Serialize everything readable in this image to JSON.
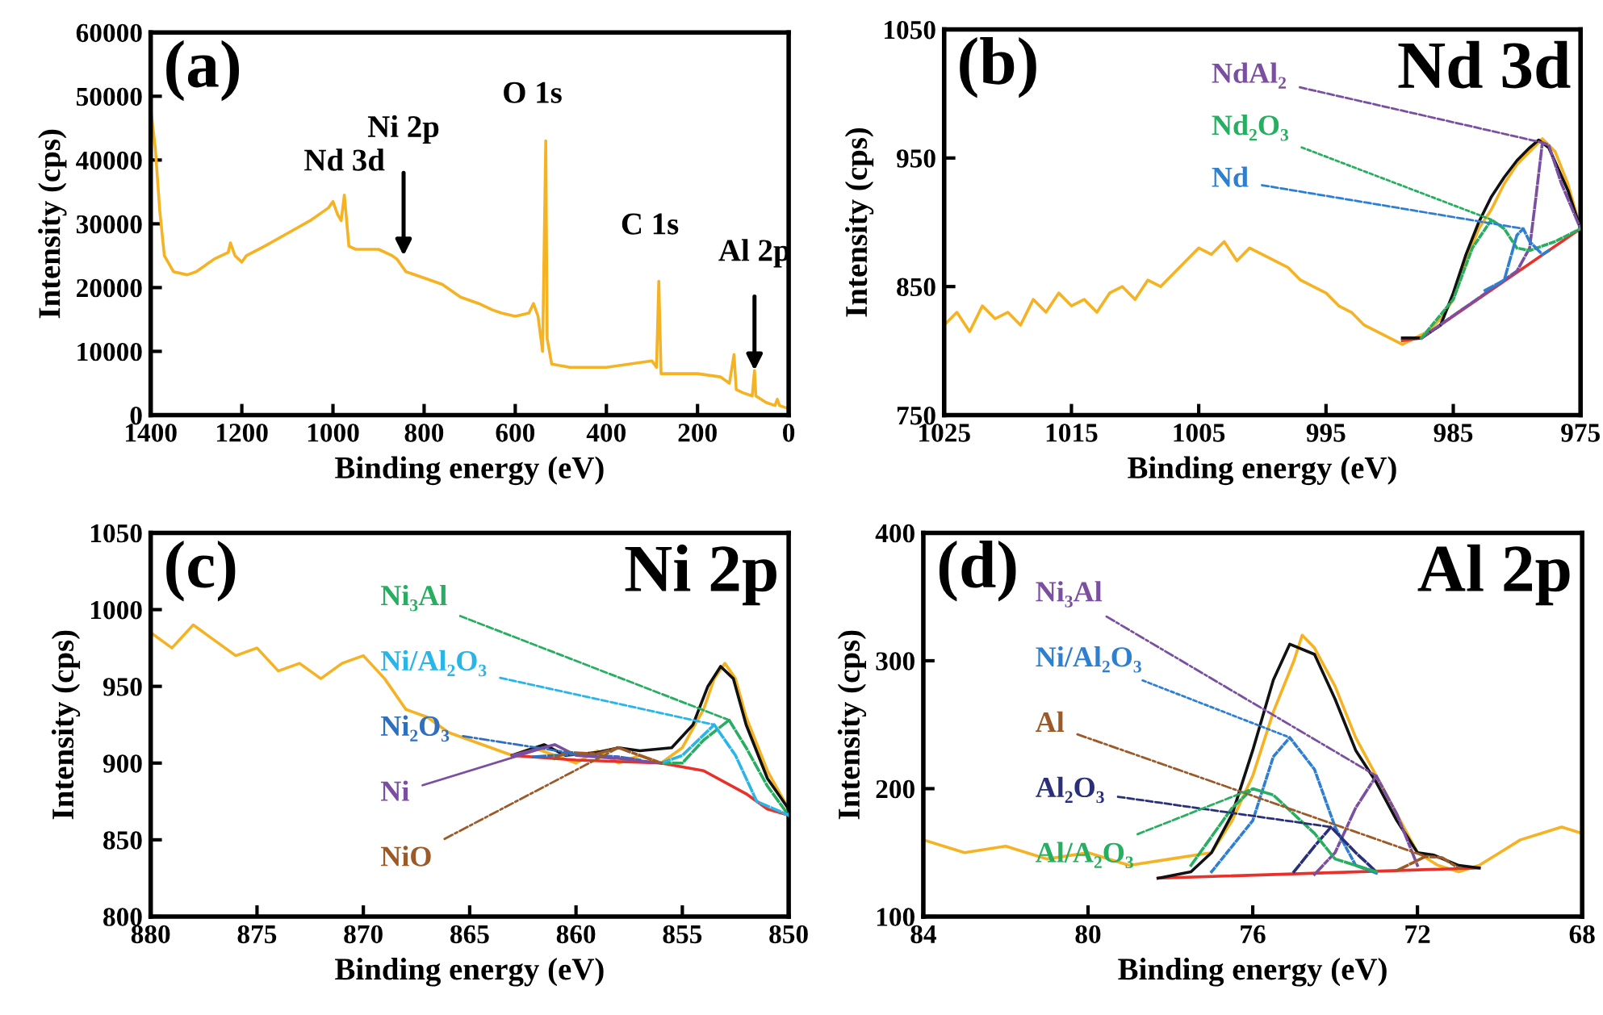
{
  "chart_data": [
    {
      "type": "line",
      "xlabel": "Binding energy (eV)",
      "ylabel": "Intensity (cps)",
      "xlim": [
        1400,
        0
      ],
      "ylim": [
        0,
        60000
      ],
      "xticks": [
        1400,
        1200,
        1000,
        800,
        600,
        400,
        200,
        0
      ],
      "yticks": [
        0,
        10000,
        20000,
        30000,
        40000,
        50000,
        60000
      ],
      "annotations": [
        "(a)",
        {
          "text": "Nd 3d",
          "x": 975,
          "y": 34500
        },
        {
          "text": "Ni 2p",
          "x": 845,
          "y": 25000
        },
        {
          "text": "O 1s",
          "x": 533,
          "y": 43000
        },
        {
          "text": "C 1s",
          "x": 285,
          "y": 21000
        },
        {
          "text": "Al 2p",
          "x": 75,
          "y": 7000
        }
      ],
      "series": [
        {
          "color": "#f5b324",
          "line_style": "solid",
          "x": [
            1400,
            1390,
            1380,
            1370,
            1350,
            1320,
            1300,
            1260,
            1230,
            1225,
            1215,
            1200,
            1190,
            1150,
            1100,
            1050,
            1010,
            1000,
            990,
            982,
            975,
            965,
            950,
            900,
            870,
            860,
            850,
            840,
            800,
            760,
            720,
            680,
            650,
            630,
            600,
            570,
            560,
            550,
            540,
            533,
            530,
            520,
            480,
            450,
            400,
            350,
            300,
            290,
            285,
            280,
            250,
            200,
            150,
            130,
            120,
            115,
            100,
            80,
            75,
            72,
            50,
            30,
            25,
            20,
            0
          ],
          "values": [
            48000,
            42000,
            32000,
            25000,
            22500,
            22000,
            22500,
            24500,
            25500,
            27000,
            25000,
            24000,
            25000,
            26500,
            28500,
            30500,
            32500,
            33500,
            31500,
            30500,
            34500,
            26500,
            26000,
            26000,
            25000,
            24500,
            23500,
            22500,
            21500,
            20500,
            18500,
            17500,
            16500,
            16000,
            15500,
            16000,
            17500,
            15500,
            10000,
            43000,
            12000,
            8000,
            7500,
            7500,
            7500,
            8000,
            8500,
            7500,
            21000,
            6500,
            6500,
            6500,
            6000,
            5000,
            9500,
            4000,
            3500,
            3000,
            7000,
            3000,
            2000,
            1500,
            2500,
            1500,
            1000
          ]
        }
      ]
    },
    {
      "type": "line",
      "title": "Nd 3d",
      "xlabel": "Binding energy (eV)",
      "ylabel": "Intensity (cps)",
      "xlim": [
        1025,
        975
      ],
      "ylim": [
        750,
        1050
      ],
      "xticks": [
        1025,
        1015,
        1005,
        995,
        985,
        975
      ],
      "yticks": [
        750,
        850,
        950,
        1050
      ],
      "annotations": [
        "(b)"
      ],
      "series": [
        {
          "color": "#f5b324",
          "line_style": "solid",
          "x": [
            1025,
            1024,
            1023,
            1022,
            1021,
            1020,
            1019,
            1018,
            1017,
            1016,
            1015,
            1014,
            1013,
            1012,
            1011,
            1010,
            1009,
            1008,
            1007,
            1006,
            1005,
            1004,
            1003,
            1002,
            1001,
            1000,
            999,
            998,
            997,
            996,
            995,
            994,
            993,
            992,
            991,
            990,
            989,
            988,
            987,
            986,
            985,
            984,
            983,
            982,
            981,
            980,
            979,
            978,
            977,
            976,
            975
          ],
          "values": [
            820,
            830,
            815,
            835,
            825,
            830,
            820,
            840,
            830,
            845,
            835,
            840,
            830,
            845,
            850,
            840,
            855,
            850,
            860,
            870,
            880,
            875,
            885,
            870,
            880,
            875,
            870,
            865,
            855,
            850,
            845,
            835,
            830,
            820,
            815,
            810,
            805,
            810,
            815,
            825,
            840,
            870,
            895,
            910,
            930,
            945,
            955,
            965,
            955,
            930,
            895
          ]
        },
        {
          "color": "#e8312a",
          "line_style": "solid",
          "x": [
            989,
            987.5,
            975
          ],
          "values": [
            808,
            810,
            895
          ]
        },
        {
          "name": "NdAl₂",
          "color": "#7a4fa0",
          "line_style": "dashed",
          "x": [
            987.5,
            980,
            979,
            978.5,
            978,
            977.5,
            976.5,
            975
          ],
          "values": [
            810,
            862,
            880,
            920,
            962,
            960,
            930,
            895
          ]
        },
        {
          "name": "Nd₂O₃",
          "color": "#27ae60",
          "line_style": "dotted",
          "x": [
            987.5,
            985,
            983.5,
            982,
            981,
            980,
            979,
            977,
            975
          ],
          "values": [
            810,
            840,
            880,
            902,
            895,
            880,
            878,
            885,
            895
          ]
        },
        {
          "name": "Nd",
          "color": "#2f7fd0",
          "line_style": "dashed",
          "x": [
            982.5,
            981,
            980,
            979.5,
            979,
            978,
            977.5
          ],
          "values": [
            847,
            855,
            890,
            895,
            885,
            875,
            878
          ]
        },
        {
          "color": "#111111",
          "line_style": "solid",
          "x": [
            989,
            987.5,
            986,
            985,
            984,
            983,
            982,
            981,
            980,
            979,
            978.3,
            977.5,
            976,
            975
          ],
          "values": [
            810,
            810,
            820,
            845,
            875,
            900,
            920,
            935,
            948,
            958,
            964,
            958,
            925,
            895
          ]
        }
      ]
    },
    {
      "type": "line",
      "title": "Ni 2p",
      "xlabel": "Binding energy (eV)",
      "ylabel": "Intensity (cps)",
      "xlim": [
        880,
        850
      ],
      "ylim": [
        800,
        1050
      ],
      "xticks": [
        880,
        875,
        870,
        865,
        860,
        855,
        850
      ],
      "yticks": [
        800,
        850,
        900,
        950,
        1000,
        1050
      ],
      "annotations": [
        "(c)"
      ],
      "series": [
        {
          "color": "#f5b324",
          "line_style": "solid",
          "x": [
            880,
            879,
            878,
            877,
            876,
            875,
            874,
            873,
            872,
            871,
            870,
            869,
            868,
            867,
            866,
            865,
            864,
            863,
            862,
            861,
            860,
            859,
            858,
            857,
            856,
            855,
            854,
            853.5,
            853,
            852.5,
            852,
            851,
            850
          ],
          "values": [
            985,
            975,
            990,
            980,
            970,
            975,
            960,
            965,
            955,
            965,
            970,
            955,
            935,
            930,
            920,
            915,
            910,
            905,
            910,
            905,
            900,
            908,
            900,
            905,
            900,
            910,
            935,
            955,
            965,
            955,
            930,
            895,
            870
          ]
        },
        {
          "color": "#e8312a",
          "line_style": "solid",
          "x": [
            863,
            860,
            856,
            854,
            852,
            851,
            850
          ],
          "values": [
            905,
            902,
            900,
            895,
            880,
            870,
            866
          ]
        },
        {
          "name": "Ni₃Al",
          "color": "#27ae60",
          "line_style": "dashed",
          "x": [
            856,
            855,
            854,
            852.8,
            852,
            851,
            850
          ],
          "values": [
            900,
            900,
            915,
            928,
            910,
            885,
            866
          ]
        },
        {
          "name": "Ni/Al₂O₃",
          "color": "#29b5e8",
          "line_style": "dashed",
          "x": [
            856,
            855,
            853.5,
            852.5,
            851.5,
            850
          ],
          "values": [
            900,
            905,
            925,
            905,
            875,
            866
          ]
        },
        {
          "name": "Ni₂O₃",
          "color": "#2f6fc0",
          "line_style": "dashdot",
          "x": [
            862,
            860,
            858,
            857
          ],
          "values": [
            904,
            906,
            904,
            902
          ]
        },
        {
          "name": "Ni",
          "color": "#7a4fa0",
          "line_style": "solid",
          "x": [
            863,
            861,
            860,
            858,
            856
          ],
          "values": [
            905,
            912,
            905,
            903,
            900
          ]
        },
        {
          "name": "NiO",
          "color": "#9c5a28",
          "line_style": "dashdot",
          "x": [
            861,
            860.5,
            859,
            858,
            857,
            856
          ],
          "values": [
            903,
            907,
            906,
            910,
            905,
            900
          ]
        },
        {
          "color": "#111111",
          "line_style": "solid",
          "x": [
            863,
            861.5,
            860.5,
            859,
            858,
            857,
            855.5,
            854.5,
            853.8,
            853.2,
            852.6,
            852,
            851,
            850
          ],
          "values": [
            905,
            912,
            905,
            907,
            910,
            908,
            910,
            925,
            950,
            963,
            955,
            925,
            890,
            870
          ]
        }
      ]
    },
    {
      "type": "line",
      "title": "Al 2p",
      "xlabel": "Binding energy (eV)",
      "ylabel": "Intensity (cps)",
      "xlim": [
        84,
        68
      ],
      "ylim": [
        100,
        400
      ],
      "xticks": [
        84,
        80,
        76,
        72,
        68
      ],
      "yticks": [
        100,
        200,
        300,
        400
      ],
      "annotations": [
        "(d)"
      ],
      "series": [
        {
          "color": "#f5b324",
          "line_style": "solid",
          "x": [
            84,
            83,
            82,
            81,
            80,
            79,
            78,
            77,
            76.5,
            76,
            75.5,
            75,
            74.8,
            74.5,
            74,
            73.5,
            73,
            72.5,
            72,
            71.5,
            71,
            70.5,
            70,
            69.5,
            69,
            68.5,
            68
          ],
          "values": [
            160,
            150,
            155,
            145,
            150,
            140,
            145,
            150,
            175,
            210,
            260,
            300,
            320,
            310,
            280,
            240,
            210,
            180,
            150,
            140,
            135,
            140,
            150,
            160,
            165,
            170,
            165
          ]
        },
        {
          "color": "#e8312a",
          "line_style": "solid",
          "x": [
            78.3,
            70.5
          ],
          "values": [
            130,
            138
          ]
        },
        {
          "name": "Ni₃Al",
          "color": "#7a4fa0",
          "line_style": "dashdot",
          "x": [
            74.5,
            74,
            73.5,
            73,
            72.5,
            72
          ],
          "values": [
            133,
            150,
            185,
            210,
            180,
            140
          ]
        },
        {
          "name": "Ni/Al₂O₃",
          "color": "#2f7fd0",
          "line_style": "dotted",
          "x": [
            77,
            76,
            75.5,
            75.1,
            74.5,
            74,
            73.5,
            73
          ],
          "values": [
            135,
            175,
            225,
            240,
            215,
            170,
            140,
            134
          ]
        },
        {
          "name": "Al",
          "color": "#9c5a28",
          "line_style": "dashdot",
          "x": [
            72.5,
            71.8,
            71.4,
            71
          ],
          "values": [
            136,
            147,
            146,
            138
          ]
        },
        {
          "name": "Al₂O₃",
          "color": "#2a2f7a",
          "line_style": "dashed",
          "x": [
            75,
            74.5,
            74.1,
            73.5,
            73
          ],
          "values": [
            135,
            155,
            170,
            150,
            135
          ]
        },
        {
          "name": "Al/A₂O₃",
          "color": "#27ae60",
          "line_style": "dashed",
          "x": [
            77.5,
            76.5,
            76,
            75.5,
            74.5,
            74,
            73
          ],
          "values": [
            140,
            185,
            200,
            195,
            165,
            145,
            135
          ]
        },
        {
          "color": "#111111",
          "line_style": "solid",
          "x": [
            78.3,
            77.5,
            77,
            76.5,
            76,
            75.5,
            75.1,
            74.5,
            74,
            73.5,
            73,
            72.5,
            72,
            71.6,
            71,
            70.5
          ],
          "values": [
            130,
            135,
            150,
            180,
            230,
            285,
            313,
            305,
            270,
            230,
            205,
            175,
            150,
            148,
            140,
            138
          ]
        }
      ]
    }
  ]
}
